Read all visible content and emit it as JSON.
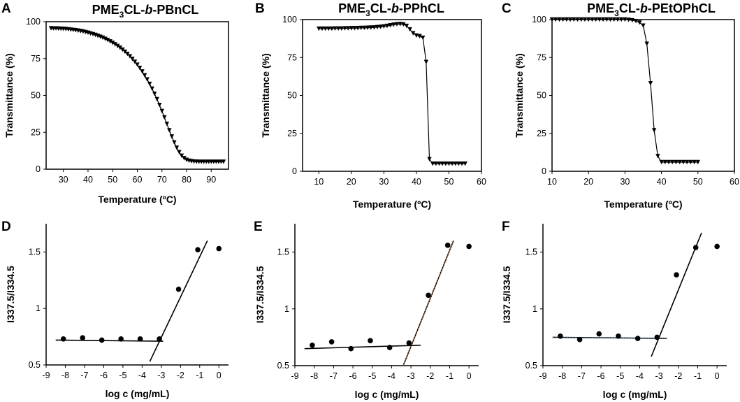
{
  "chart_data": [
    {
      "panel": "A",
      "type": "line",
      "title_parts": [
        "PME",
        "3",
        "CL-",
        "b",
        "-PBnCL"
      ],
      "xlabel": "Temperature (ºC)",
      "ylabel": "Transmittance (%)",
      "xlim": [
        23,
        97
      ],
      "ylim": [
        0,
        100
      ],
      "xticks": [
        30,
        40,
        50,
        60,
        70,
        80,
        90
      ],
      "yticks": [
        0,
        25,
        50,
        75,
        100
      ],
      "marker": "triangle-down",
      "x": [
        25,
        26,
        27,
        28,
        29,
        30,
        31,
        32,
        33,
        34,
        35,
        36,
        37,
        38,
        39,
        40,
        41,
        42,
        43,
        44,
        45,
        46,
        47,
        48,
        49,
        50,
        51,
        52,
        53,
        54,
        55,
        56,
        57,
        58,
        59,
        60,
        61,
        62,
        63,
        64,
        65,
        66,
        67,
        68,
        69,
        70,
        71,
        72,
        73,
        74,
        75,
        76,
        77,
        78,
        79,
        80,
        81,
        82,
        83,
        84,
        85,
        86,
        87,
        88,
        89,
        90,
        91,
        92,
        93,
        94,
        95
      ],
      "y": [
        95.5,
        95.4,
        95.4,
        95.3,
        95.2,
        95.1,
        95,
        94.8,
        94.6,
        94.4,
        94.2,
        93.9,
        93.6,
        93.3,
        92.9,
        92.5,
        92,
        91.5,
        91,
        90.4,
        89.8,
        89.1,
        88.3,
        87.5,
        86.6,
        85.6,
        84.6,
        83.5,
        82.3,
        81,
        79.6,
        78.1,
        76.5,
        74.7,
        72.8,
        70.8,
        68.6,
        66.2,
        63.6,
        60.8,
        57.8,
        54.6,
        51.1,
        47.4,
        43.5,
        39.4,
        35.1,
        30.7,
        26.3,
        22.1,
        18.1,
        14.5,
        11.5,
        9.1,
        7.4,
        6.3,
        5.7,
        5.4,
        5.2,
        5.1,
        5,
        5,
        5,
        5,
        5,
        5,
        5,
        5,
        5,
        5,
        5
      ]
    },
    {
      "panel": "B",
      "type": "line",
      "title_parts": [
        "PME",
        "3",
        "CL-",
        "b",
        "-PPhCL"
      ],
      "xlabel": "Temperature (ºC)",
      "ylabel": "Transmittance (%)",
      "xlim": [
        5,
        60
      ],
      "ylim": [
        0,
        100
      ],
      "xticks": [
        10,
        20,
        30,
        40,
        50,
        60
      ],
      "yticks": [
        0,
        25,
        50,
        75,
        100
      ],
      "marker": "triangle-down",
      "x": [
        10,
        11,
        12,
        13,
        14,
        15,
        16,
        17,
        18,
        19,
        20,
        21,
        22,
        23,
        24,
        25,
        26,
        27,
        28,
        29,
        30,
        31,
        32,
        33,
        34,
        35,
        36,
        37,
        38,
        39,
        40,
        41,
        42,
        43,
        44,
        45,
        46,
        47,
        48,
        49,
        50,
        51,
        52,
        53,
        54,
        55
      ],
      "y": [
        94,
        94,
        94,
        94,
        94,
        94.1,
        94.1,
        94.1,
        94.2,
        94.2,
        94.3,
        94.3,
        94.4,
        94.5,
        94.5,
        94.6,
        94.7,
        94.8,
        95,
        95.2,
        95.5,
        95.8,
        96.2,
        96.6,
        96.9,
        97,
        96.8,
        95.8,
        93.5,
        91,
        89.5,
        89,
        88,
        72,
        8,
        5,
        5,
        5,
        5,
        5,
        5,
        5,
        5,
        5,
        5,
        5
      ]
    },
    {
      "panel": "C",
      "type": "line",
      "title_parts": [
        "PME",
        "3",
        "CL-",
        "b",
        "-PEtOPhCL"
      ],
      "xlabel": "Temperature (ºC)",
      "ylabel": "Transmittance (%)",
      "xlim": [
        10,
        60
      ],
      "ylim": [
        0,
        100
      ],
      "xticks": [
        10,
        20,
        30,
        40,
        50,
        60
      ],
      "yticks": [
        0,
        25,
        50,
        75,
        100
      ],
      "marker": "triangle-down",
      "x": [
        10,
        11,
        12,
        13,
        14,
        15,
        16,
        17,
        18,
        19,
        20,
        21,
        22,
        23,
        24,
        25,
        26,
        27,
        28,
        29,
        30,
        31,
        32,
        33,
        34,
        35,
        36,
        37,
        38,
        39,
        40,
        41,
        42,
        43,
        44,
        45,
        46,
        47,
        48,
        49,
        50
      ],
      "y": [
        100,
        100,
        100,
        100,
        100,
        100,
        100,
        100,
        100,
        100,
        100,
        100,
        100,
        100,
        100,
        100,
        100,
        100,
        100,
        100,
        100,
        99.8,
        99.5,
        99,
        98,
        96,
        84,
        58,
        27,
        10,
        6,
        6,
        6,
        6,
        6,
        6,
        6,
        6,
        6,
        6,
        6
      ]
    },
    {
      "panel": "D",
      "type": "scatter",
      "xlabel": "log c (mg/mL)",
      "ylabel": "I337.5/I334.5",
      "xlim": [
        -9,
        0.5
      ],
      "ylim": [
        0.5,
        1.75
      ],
      "xticks": [
        -9,
        -8,
        -7,
        -6,
        -5,
        -4,
        -3,
        -2,
        -1,
        0
      ],
      "yticks": [
        0.5,
        1,
        1.5
      ],
      "ytick_labels": [
        "0.5",
        "1",
        "1.5"
      ],
      "x": [
        -8.1,
        -7.1,
        -6.1,
        -5.1,
        -4.1,
        -3.1,
        -2.1,
        -1.1,
        0
      ],
      "y": [
        0.73,
        0.74,
        0.72,
        0.73,
        0.73,
        0.73,
        1.17,
        1.52,
        1.53
      ],
      "fit_lines": [
        {
          "x": [
            -8.5,
            -2.9
          ],
          "y": [
            0.72,
            0.71
          ],
          "style": "black"
        },
        {
          "x": [
            -3.6,
            -0.6
          ],
          "y": [
            0.53,
            1.6
          ],
          "style": "black"
        }
      ]
    },
    {
      "panel": "E",
      "type": "scatter",
      "xlabel": "log c (mg/mL)",
      "ylabel": "I337.5/I334.5",
      "xlim": [
        -9,
        0.5
      ],
      "ylim": [
        0.5,
        1.75
      ],
      "xticks": [
        -9,
        -8,
        -7,
        -6,
        -5,
        -4,
        -3,
        -2,
        -1,
        0
      ],
      "yticks": [
        0.5,
        1,
        1.5
      ],
      "ytick_labels": [
        "0.5",
        "1",
        "1.5"
      ],
      "x": [
        -8.1,
        -7.1,
        -6.1,
        -5.1,
        -4.1,
        -3.1,
        -2.1,
        -1.1,
        0
      ],
      "y": [
        0.68,
        0.71,
        0.65,
        0.72,
        0.66,
        0.7,
        1.12,
        1.56,
        1.55
      ],
      "fit_lines": [
        {
          "x": [
            -8.5,
            -2.5
          ],
          "y": [
            0.65,
            0.68
          ],
          "style": "black"
        },
        {
          "x": [
            -3.4,
            -0.8
          ],
          "y": [
            0.5,
            1.6
          ],
          "style": "orange"
        }
      ]
    },
    {
      "panel": "F",
      "type": "scatter",
      "xlabel": "log c (mg/mL)",
      "ylabel": "I337.5/I334.5",
      "xlim": [
        -9,
        0.5
      ],
      "ylim": [
        0.5,
        1.75
      ],
      "xticks": [
        -9,
        -8,
        -7,
        -6,
        -5,
        -4,
        -3,
        -2,
        -1,
        0
      ],
      "yticks": [
        0.5,
        1,
        1.5
      ],
      "ytick_labels": [
        "0.5",
        "1",
        "1.5"
      ],
      "x": [
        -8.1,
        -7.1,
        -6.1,
        -5.1,
        -4.1,
        -3.1,
        -2.1,
        -1.1,
        0
      ],
      "y": [
        0.76,
        0.73,
        0.78,
        0.76,
        0.74,
        0.75,
        1.3,
        1.54,
        1.55
      ],
      "fit_lines": [
        {
          "x": [
            -8.5,
            -2.6
          ],
          "y": [
            0.75,
            0.74
          ],
          "style": "blue"
        },
        {
          "x": [
            -3.4,
            -0.8
          ],
          "y": [
            0.58,
            1.67
          ],
          "style": "black"
        }
      ]
    }
  ]
}
